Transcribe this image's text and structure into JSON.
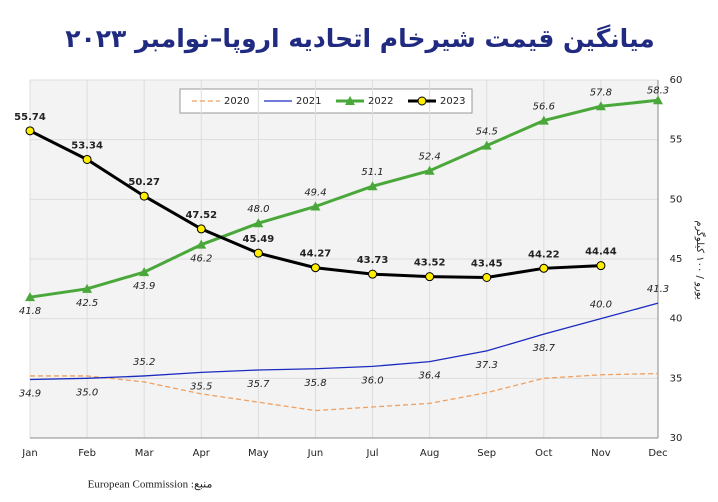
{
  "chart_data": {
    "type": "line",
    "title": "میانگین قیمت شیرخام اتحادیه اروپا–نوامبر ۲۰۲۳",
    "y_label": "یورو / ۱۰۰ کیلوگرم",
    "source": "منبع: European Commission",
    "categories": [
      "Jan",
      "Feb",
      "Mar",
      "Apr",
      "May",
      "Jun",
      "Jul",
      "Aug",
      "Sep",
      "Oct",
      "Nov",
      "Dec"
    ],
    "ylim": [
      30,
      60
    ],
    "yticks": [
      30,
      35,
      40,
      45,
      50,
      55,
      60
    ],
    "grid": true,
    "series": [
      {
        "name": "2020",
        "color": "#f0a060",
        "dash": true,
        "values": [
          35.2,
          35.2,
          34.7,
          33.7,
          33.0,
          32.3,
          32.6,
          32.9,
          33.8,
          35.0,
          35.3,
          35.4
        ]
      },
      {
        "name": "2021",
        "color": "#1a2bc0",
        "values": [
          34.9,
          35.0,
          35.2,
          35.5,
          35.7,
          35.8,
          36.0,
          36.4,
          37.3,
          38.7,
          40.0,
          41.3
        ],
        "value_labels": [
          "34.9",
          "35.0",
          "35.2",
          "35.5",
          "35.7",
          "35.8",
          "36.0",
          "36.4",
          "37.3",
          "38.7",
          "40.0",
          "41.3"
        ]
      },
      {
        "name": "2022",
        "color": "#4aa83a",
        "marker": "triangle",
        "values": [
          41.8,
          42.5,
          43.9,
          46.2,
          48.0,
          49.4,
          51.1,
          52.4,
          54.5,
          56.6,
          57.8,
          58.3
        ],
        "value_labels": [
          "41.8",
          "42.5",
          "43.9",
          "46.2",
          "48.0",
          "49.4",
          "51.1",
          "52.4",
          "54.5",
          "56.6",
          "57.8",
          "58.3"
        ]
      },
      {
        "name": "2023",
        "color": "#000000",
        "marker": "circle",
        "marker_color": "#ffee00",
        "last_label_color": "#e00000",
        "values": [
          55.74,
          53.34,
          50.27,
          47.52,
          45.49,
          44.27,
          43.73,
          43.52,
          43.45,
          44.22,
          44.44,
          null
        ]
      }
    ]
  }
}
